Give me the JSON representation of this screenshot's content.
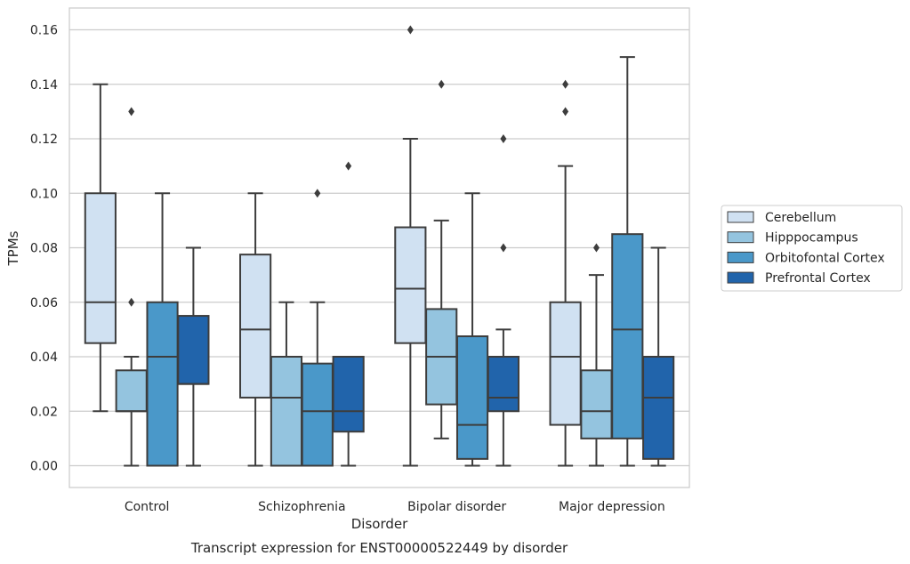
{
  "chart_data": {
    "type": "box",
    "ylabel": "TPMs",
    "xlabel": "Disorder",
    "caption": "Transcript expression for ENST00000522449 by disorder",
    "ylim": [
      -0.008,
      0.168
    ],
    "yticks": [
      0.0,
      0.02,
      0.04,
      0.06,
      0.08,
      0.1,
      0.12,
      0.14,
      0.16
    ],
    "ytick_labels": [
      "0.00",
      "0.02",
      "0.04",
      "0.06",
      "0.08",
      "0.10",
      "0.12",
      "0.14",
      "0.16"
    ],
    "grid": "horizontal",
    "legend_position": "right",
    "categories": [
      "Control",
      "Schizophrenia",
      "Bipolar disorder",
      "Major depression"
    ],
    "series": [
      {
        "name": "Cerebellum",
        "color": "#d0e1f2",
        "boxes": [
          {
            "whislo": 0.02,
            "q1": 0.045,
            "med": 0.06,
            "q3": 0.1,
            "whishi": 0.14,
            "fliers": []
          },
          {
            "whislo": 0.0,
            "q1": 0.025,
            "med": 0.05,
            "q3": 0.0775,
            "whishi": 0.1,
            "fliers": []
          },
          {
            "whislo": 0.0,
            "q1": 0.045,
            "med": 0.065,
            "q3": 0.0875,
            "whishi": 0.12,
            "fliers": [
              0.16
            ]
          },
          {
            "whislo": 0.0,
            "q1": 0.015,
            "med": 0.04,
            "q3": 0.06,
            "whishi": 0.11,
            "fliers": [
              0.13,
              0.14
            ]
          }
        ]
      },
      {
        "name": "Hipppocampus",
        "color": "#94c4df",
        "boxes": [
          {
            "whislo": 0.0,
            "q1": 0.02,
            "med": 0.02,
            "q3": 0.035,
            "whishi": 0.04,
            "fliers": [
              0.06,
              0.13
            ]
          },
          {
            "whislo": 0.0,
            "q1": 0.0,
            "med": 0.025,
            "q3": 0.04,
            "whishi": 0.06,
            "fliers": []
          },
          {
            "whislo": 0.01,
            "q1": 0.0225,
            "med": 0.04,
            "q3": 0.0575,
            "whishi": 0.09,
            "fliers": [
              0.14
            ]
          },
          {
            "whislo": 0.0,
            "q1": 0.01,
            "med": 0.02,
            "q3": 0.035,
            "whishi": 0.07,
            "fliers": [
              0.08
            ]
          }
        ]
      },
      {
        "name": "Orbitofontal Cortex",
        "color": "#4a98c9",
        "boxes": [
          {
            "whislo": 0.0,
            "q1": 0.0,
            "med": 0.04,
            "q3": 0.06,
            "whishi": 0.1,
            "fliers": []
          },
          {
            "whislo": 0.0,
            "q1": 0.0,
            "med": 0.02,
            "q3": 0.0375,
            "whishi": 0.06,
            "fliers": [
              0.1
            ]
          },
          {
            "whislo": 0.0,
            "q1": 0.0025,
            "med": 0.015,
            "q3": 0.0475,
            "whishi": 0.1,
            "fliers": []
          },
          {
            "whislo": 0.0,
            "q1": 0.01,
            "med": 0.05,
            "q3": 0.085,
            "whishi": 0.15,
            "fliers": []
          }
        ]
      },
      {
        "name": "Prefrontal Cortex",
        "color": "#2164ab",
        "boxes": [
          {
            "whislo": 0.0,
            "q1": 0.03,
            "med": 0.03,
            "q3": 0.055,
            "whishi": 0.08,
            "fliers": []
          },
          {
            "whislo": 0.0,
            "q1": 0.0125,
            "med": 0.02,
            "q3": 0.04,
            "whishi": 0.04,
            "fliers": [
              0.11
            ]
          },
          {
            "whislo": 0.0,
            "q1": 0.02,
            "med": 0.025,
            "q3": 0.04,
            "whishi": 0.05,
            "fliers": [
              0.08,
              0.12
            ]
          },
          {
            "whislo": 0.0,
            "q1": 0.0025,
            "med": 0.025,
            "q3": 0.04,
            "whishi": 0.08,
            "fliers": []
          }
        ]
      }
    ]
  }
}
